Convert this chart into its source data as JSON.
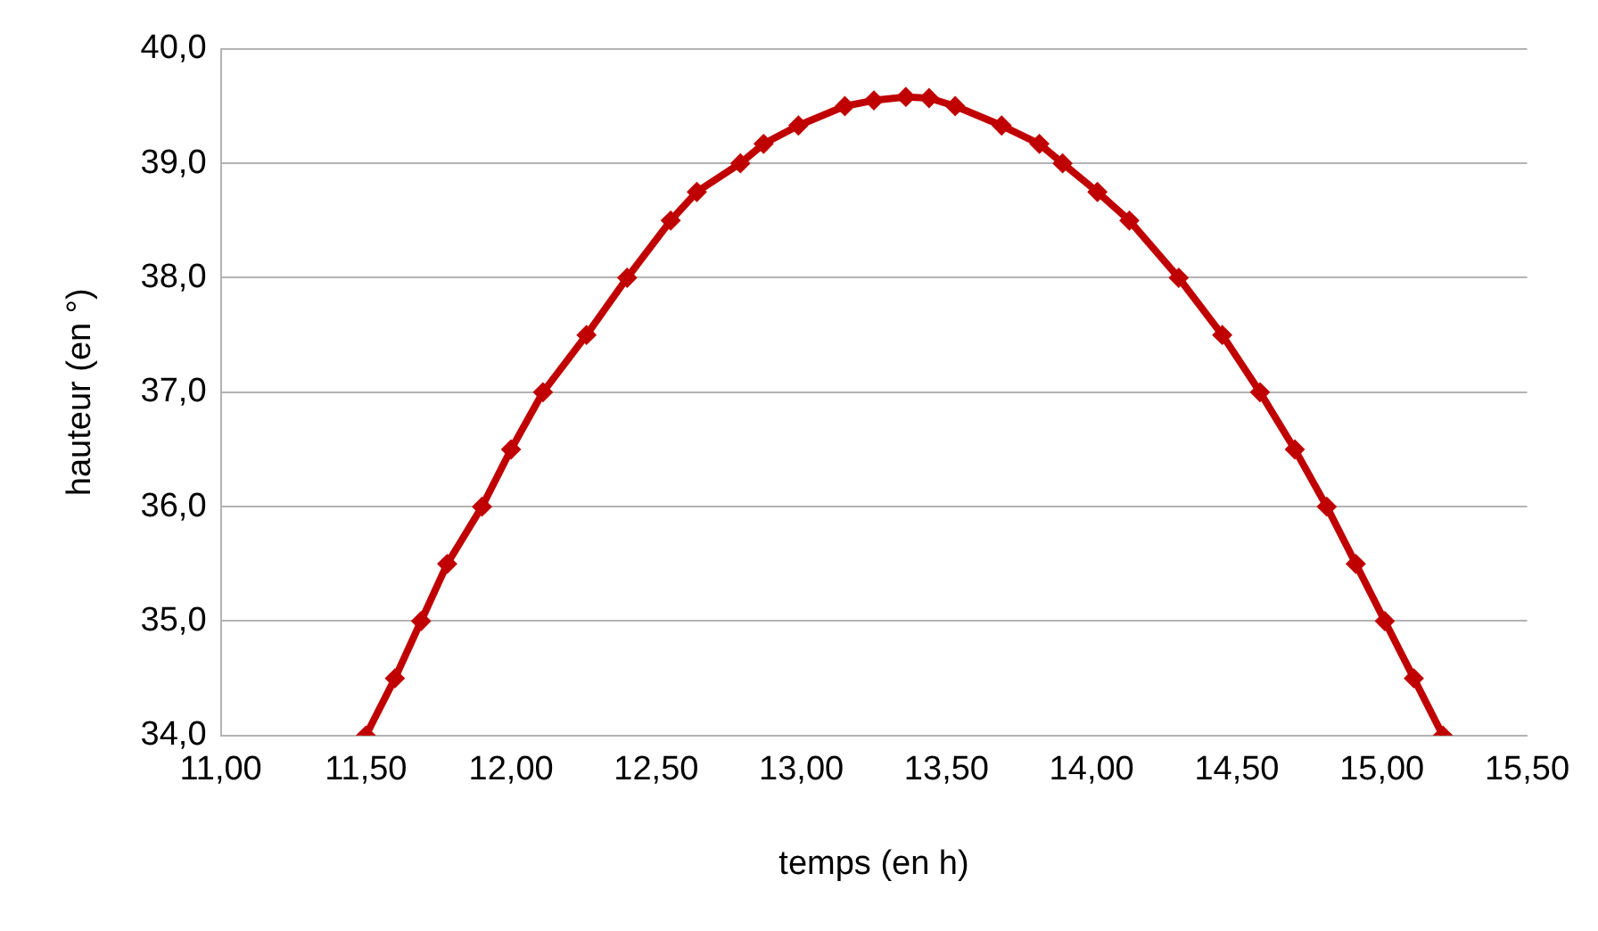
{
  "chart_data": {
    "type": "line",
    "xlabel": "temps (en h)",
    "ylabel": "hauteur (en °)",
    "x": [
      11.5,
      11.6,
      11.69,
      11.78,
      11.9,
      12.0,
      12.11,
      12.26,
      12.4,
      12.55,
      12.64,
      12.79,
      12.87,
      12.99,
      13.15,
      13.25,
      13.36,
      13.44,
      13.53,
      13.69,
      13.82,
      13.9,
      14.02,
      14.13,
      14.3,
      14.45,
      14.58,
      14.7,
      14.81,
      14.91,
      15.01,
      15.11,
      15.21
    ],
    "series": [
      {
        "color": "#c00000",
        "values": [
          34.0,
          34.5,
          35.0,
          35.5,
          36.0,
          36.5,
          37.0,
          37.5,
          38.0,
          38.5,
          38.75,
          39.0,
          39.17,
          39.33,
          39.5,
          39.55,
          39.58,
          39.57,
          39.5,
          39.33,
          39.17,
          39.0,
          38.75,
          38.5,
          38.0,
          37.5,
          37.0,
          36.5,
          36.0,
          35.5,
          35.0,
          34.5,
          34.0
        ]
      }
    ],
    "xlim": [
      11,
      15.5
    ],
    "xticks": [
      {
        "value": 11,
        "label": "11,00"
      },
      {
        "value": 11.5,
        "label": "11,50"
      },
      {
        "value": 12,
        "label": "12,00"
      },
      {
        "value": 12.5,
        "label": "12,50"
      },
      {
        "value": 13,
        "label": "13,00"
      },
      {
        "value": 13.5,
        "label": "13,50"
      },
      {
        "value": 14,
        "label": "14,00"
      },
      {
        "value": 14.5,
        "label": "14,50"
      },
      {
        "value": 15,
        "label": "15,00"
      },
      {
        "value": 15.5,
        "label": "15,50"
      }
    ],
    "ylim": [
      34,
      40
    ],
    "yticks": [
      {
        "value": 34,
        "label": "34,0"
      },
      {
        "value": 35,
        "label": "35,0"
      },
      {
        "value": 36,
        "label": "36,0"
      },
      {
        "value": 37,
        "label": "37,0"
      },
      {
        "value": 38,
        "label": "38,0"
      },
      {
        "value": 39,
        "label": "39,0"
      },
      {
        "value": 40,
        "label": "40,0"
      }
    ],
    "grid": "y",
    "legend": false,
    "marker": "diamond",
    "line_style": "solid"
  }
}
